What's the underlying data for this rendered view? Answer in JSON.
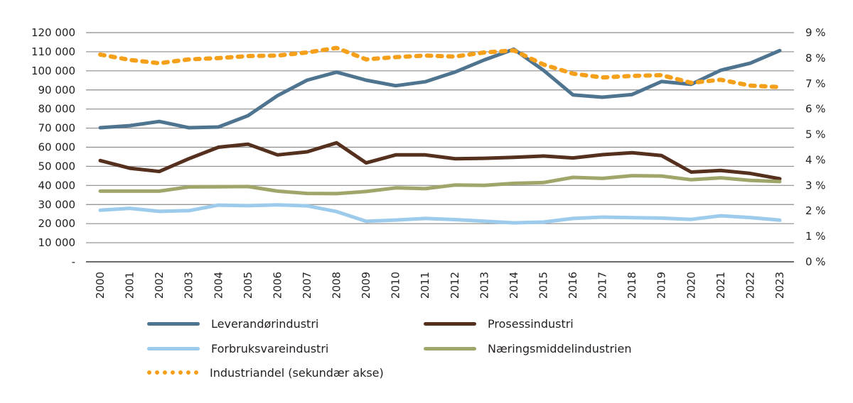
{
  "chart_data": {
    "type": "line",
    "title": "",
    "xlabel": "",
    "ylabel": "",
    "x": [
      "2000",
      "2001",
      "2002",
      "2003",
      "2004",
      "2005",
      "2006",
      "2007",
      "2008",
      "2009",
      "2010",
      "2011",
      "2012",
      "2013",
      "2014",
      "2015",
      "2016",
      "2017",
      "2018",
      "2019",
      "2020",
      "2021",
      "2022",
      "2023"
    ],
    "ylim": [
      0,
      120000
    ],
    "y2lim": [
      0,
      9
    ],
    "grid": true,
    "y_ticks": [
      "-",
      "10 000",
      "20 000",
      "30 000",
      "40 000",
      "50 000",
      "60 000",
      "70 000",
      "80 000",
      "90 000",
      "100 000",
      "110 000",
      "120 000"
    ],
    "y2_ticks": [
      "0 %",
      "1 %",
      "2 %",
      "3 %",
      "4 %",
      "5 %",
      "6 %",
      "7 %",
      "8 %",
      "9 %"
    ],
    "legend_position": "bottom",
    "series": [
      {
        "name": "Leverandørindustri",
        "color": "#4e7490",
        "axis": "primary",
        "style": "solid",
        "values": [
          70200,
          71300,
          73500,
          70200,
          70600,
          76500,
          87000,
          95100,
          99300,
          95100,
          92200,
          94300,
          99300,
          105700,
          111300,
          100300,
          87400,
          86200,
          87600,
          94400,
          92900,
          100300,
          104000,
          110600
        ]
      },
      {
        "name": "Prosessindustri",
        "color": "#55301e",
        "axis": "primary",
        "style": "solid",
        "values": [
          53000,
          49000,
          47300,
          54000,
          60000,
          61600,
          56000,
          57600,
          62300,
          51800,
          56000,
          56000,
          54000,
          54200,
          54700,
          55400,
          54400,
          56100,
          57100,
          55600,
          47000,
          47800,
          46300,
          43500
        ]
      },
      {
        "name": "Forbruksvareindustri",
        "color": "#9ccbeb",
        "axis": "primary",
        "style": "solid",
        "values": [
          27000,
          28000,
          26400,
          26800,
          29700,
          29400,
          29800,
          29300,
          26300,
          21200,
          21900,
          22700,
          22100,
          21300,
          20400,
          20800,
          22700,
          23400,
          23100,
          22900,
          22200,
          24100,
          23200,
          21800
        ]
      },
      {
        "name": "Næringsmiddelindustrien",
        "color": "#a0a66a",
        "axis": "primary",
        "style": "solid",
        "values": [
          37000,
          37000,
          37000,
          39200,
          39300,
          39400,
          37000,
          35800,
          35700,
          36800,
          38700,
          38300,
          40200,
          40000,
          41100,
          41500,
          44200,
          43700,
          45100,
          44900,
          43000,
          44000,
          42600,
          42000
        ]
      },
      {
        "name": "Industriandel (sekundær akse)",
        "color": "#f5a01a",
        "axis": "secondary",
        "style": "dotted",
        "values": [
          8.14,
          7.93,
          7.8,
          7.95,
          8.0,
          8.08,
          8.1,
          8.22,
          8.4,
          7.95,
          8.04,
          8.1,
          8.06,
          8.22,
          8.3,
          7.75,
          7.39,
          7.24,
          7.3,
          7.33,
          7.03,
          7.15,
          6.92,
          6.86
        ]
      }
    ]
  }
}
